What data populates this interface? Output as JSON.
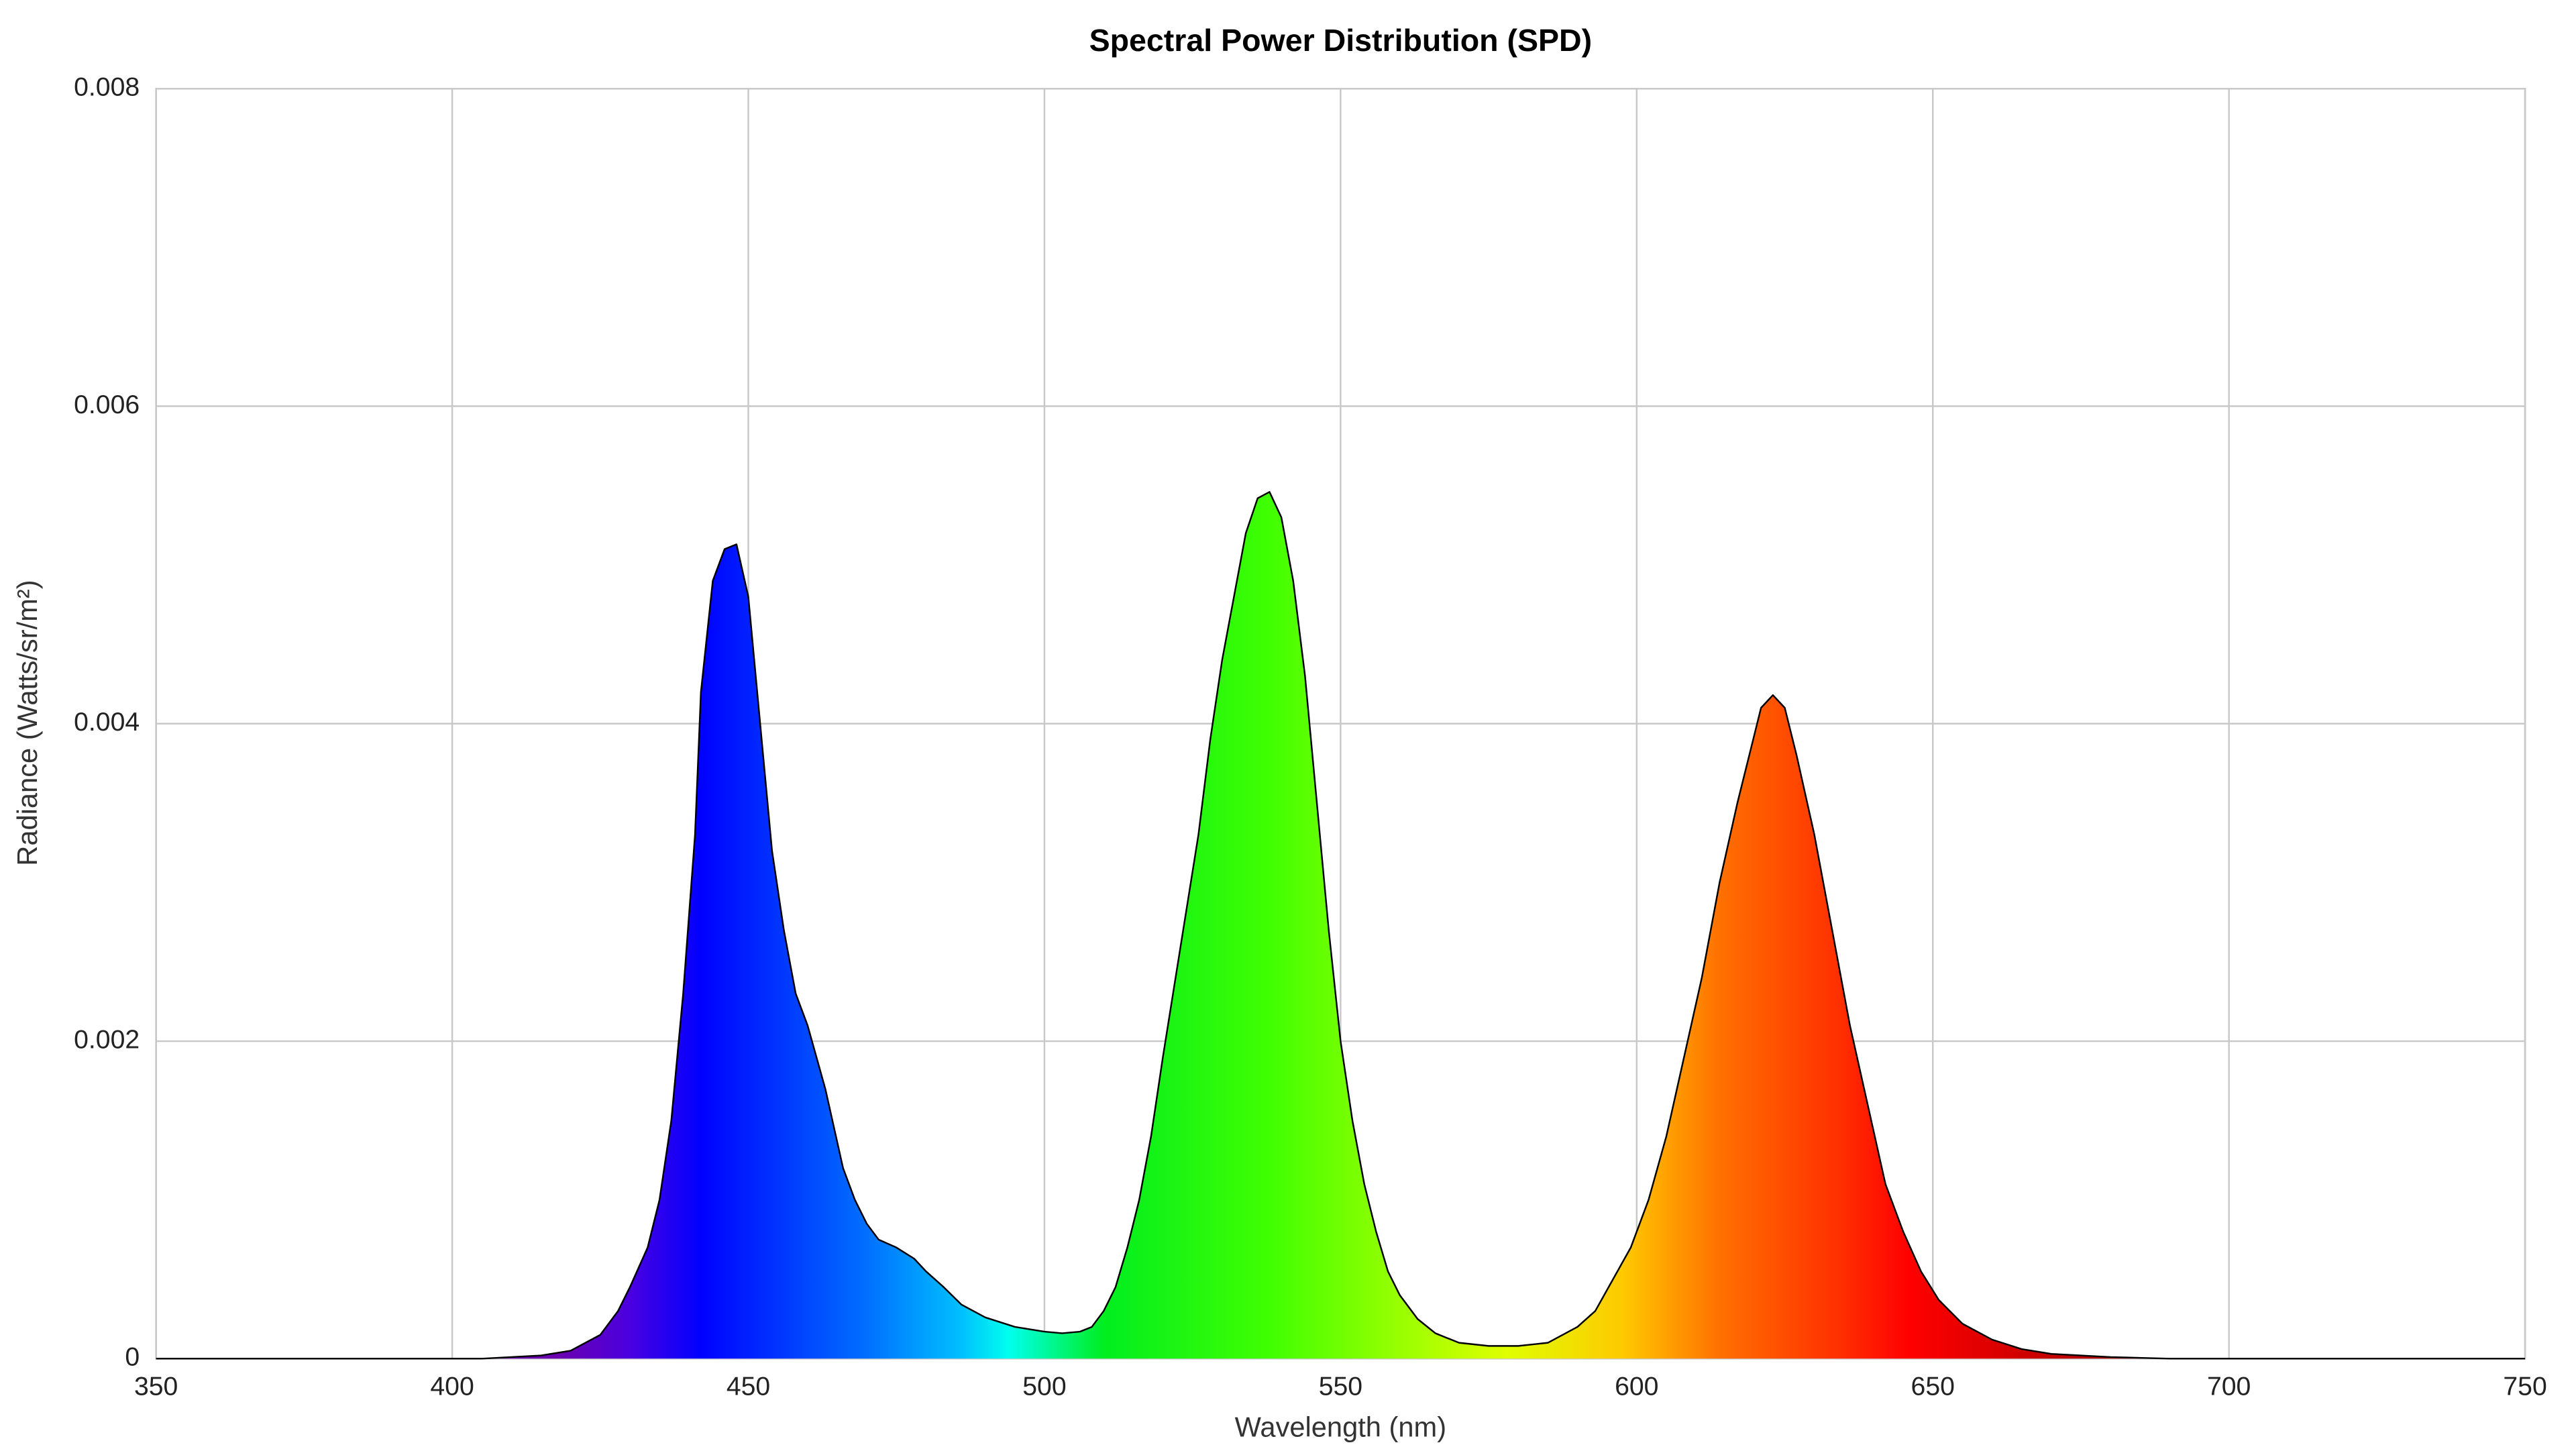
{
  "chart_data": {
    "type": "area",
    "title": "Spectral Power Distribution (SPD)",
    "xlabel": "Wavelength (nm)",
    "ylabel": "Radiance (Watts/sr/m²)",
    "x": [
      350,
      360,
      370,
      380,
      390,
      400,
      405,
      410,
      415,
      420,
      425,
      428,
      430,
      433,
      435,
      437,
      439,
      441,
      442,
      444,
      446,
      448,
      450,
      452,
      454,
      456,
      458,
      460,
      463,
      466,
      468,
      470,
      472,
      475,
      478,
      480,
      483,
      486,
      490,
      495,
      500,
      503,
      506,
      508,
      510,
      512,
      514,
      516,
      518,
      520,
      523,
      526,
      528,
      530,
      532,
      534,
      536,
      538,
      540,
      542,
      544,
      546,
      548,
      550,
      552,
      554,
      556,
      558,
      560,
      563,
      566,
      570,
      575,
      580,
      585,
      590,
      593,
      596,
      599,
      602,
      605,
      608,
      611,
      614,
      617,
      619,
      621,
      623,
      625,
      627,
      630,
      633,
      636,
      639,
      642,
      645,
      648,
      651,
      655,
      660,
      665,
      670,
      680,
      690,
      700,
      710,
      720,
      730,
      740,
      750
    ],
    "values": [
      0,
      0,
      0,
      0,
      0,
      0,
      0,
      1e-05,
      2e-05,
      5e-05,
      0.00015,
      0.0003,
      0.00045,
      0.0007,
      0.001,
      0.0015,
      0.0023,
      0.0033,
      0.0042,
      0.0049,
      0.0051,
      0.00513,
      0.0048,
      0.004,
      0.0032,
      0.0027,
      0.0023,
      0.0021,
      0.0017,
      0.0012,
      0.001,
      0.00085,
      0.00075,
      0.0007,
      0.00063,
      0.00055,
      0.00045,
      0.00034,
      0.00026,
      0.0002,
      0.00017,
      0.00016,
      0.00017,
      0.0002,
      0.0003,
      0.00045,
      0.0007,
      0.001,
      0.0014,
      0.0019,
      0.0026,
      0.0033,
      0.0039,
      0.0044,
      0.0048,
      0.0052,
      0.00542,
      0.00546,
      0.0053,
      0.0049,
      0.0043,
      0.0035,
      0.0027,
      0.002,
      0.0015,
      0.0011,
      0.0008,
      0.00055,
      0.0004,
      0.00025,
      0.00016,
      0.0001,
      8e-05,
      8e-05,
      0.0001,
      0.0002,
      0.0003,
      0.0005,
      0.0007,
      0.001,
      0.0014,
      0.0019,
      0.0024,
      0.003,
      0.0035,
      0.0038,
      0.0041,
      0.00418,
      0.0041,
      0.0038,
      0.0033,
      0.0027,
      0.0021,
      0.0016,
      0.0011,
      0.0008,
      0.00055,
      0.00037,
      0.00022,
      0.00012,
      6e-05,
      3e-05,
      1e-05,
      0,
      0,
      0,
      0,
      0,
      0,
      0
    ],
    "line_color": "#000000",
    "xlim": [
      350,
      750
    ],
    "xticks": [
      350,
      400,
      450,
      500,
      550,
      600,
      650,
      700,
      750
    ],
    "ylim": [
      0,
      0.008
    ],
    "yticks": [
      0,
      0.002,
      0.004,
      0.006,
      0.008
    ],
    "grid": true
  }
}
